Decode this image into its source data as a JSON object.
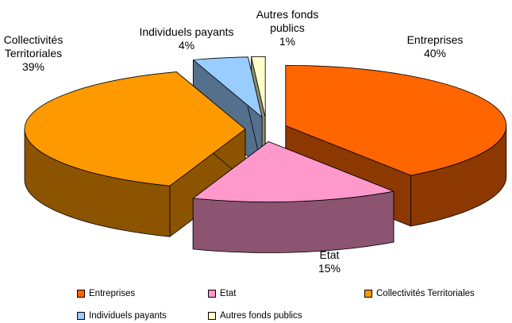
{
  "chart_data": {
    "type": "pie3d",
    "categories": [
      "Entreprises",
      "Etat",
      "Collectivités Territoriales",
      "Individuels payants",
      "Autres fonds publics"
    ],
    "values": [
      40,
      15,
      39,
      4,
      1
    ],
    "value_labels": [
      "40%",
      "15%",
      "39%",
      "4%",
      "1%"
    ],
    "colors": [
      "#FF6600",
      "#FF99CC",
      "#FF9900",
      "#99CCFF",
      "#FFFFCC"
    ],
    "legend": "bottom"
  }
}
